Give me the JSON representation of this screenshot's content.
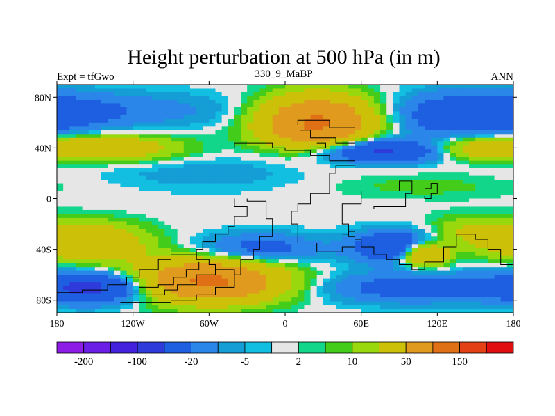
{
  "chart_data": {
    "type": "heatmap",
    "title": "Height perturbation at 500 hPa (in m)",
    "left_string": "Expt = tfGwo",
    "center_string": "330_9_MaBP",
    "right_string": "ANN",
    "xlim": [
      -180,
      180
    ],
    "ylim": [
      -90,
      90
    ],
    "x_ticks": [
      {
        "value": -180,
        "label": "180"
      },
      {
        "value": -120,
        "label": "120W"
      },
      {
        "value": -60,
        "label": "60W"
      },
      {
        "value": 0,
        "label": "0"
      },
      {
        "value": 60,
        "label": "60E"
      },
      {
        "value": 120,
        "label": "120E"
      },
      {
        "value": 180,
        "label": "180"
      }
    ],
    "y_ticks": [
      {
        "value": 80,
        "label": "80N"
      },
      {
        "value": 40,
        "label": "40N"
      },
      {
        "value": 0,
        "label": "0"
      },
      {
        "value": -40,
        "label": "40S"
      },
      {
        "value": -80,
        "label": "80S"
      }
    ],
    "colorbar": {
      "levels": [
        -200,
        -150,
        -100,
        -50,
        -20,
        -10,
        -5,
        -2,
        2,
        5,
        10,
        20,
        50,
        100,
        150,
        200
      ],
      "labels": [
        {
          "level": -200,
          "label": "-200"
        },
        {
          "level": -100,
          "label": "-100"
        },
        {
          "level": -20,
          "label": "-20"
        },
        {
          "level": -5,
          "label": "-5"
        },
        {
          "level": 2,
          "label": "2"
        },
        {
          "level": 10,
          "label": "10"
        },
        {
          "level": 50,
          "label": "50"
        },
        {
          "level": 150,
          "label": "150"
        }
      ],
      "colors": [
        "#8c1ce6",
        "#6a1ee6",
        "#4422dd",
        "#2e3ad9",
        "#1e5ee0",
        "#2a86e8",
        "#159dd6",
        "#12bfe0",
        "#e6e6e6",
        "#12d68a",
        "#44cc1a",
        "#9ad80e",
        "#ccc008",
        "#e09a1e",
        "#e07015",
        "#e34015",
        "#e00e0e"
      ]
    },
    "field_blobs": [
      {
        "lon": -130,
        "lat": 70,
        "rlon": 100,
        "rlat": 14,
        "value": -15
      },
      {
        "lon": 150,
        "lat": 65,
        "rlon": 60,
        "rlat": 18,
        "value": -40
      },
      {
        "lon": 25,
        "lat": 60,
        "rlon": 42,
        "rlat": 20,
        "value": 110
      },
      {
        "lon": -140,
        "lat": 40,
        "rlon": 55,
        "rlat": 10,
        "value": 40
      },
      {
        "lon": 150,
        "lat": 40,
        "rlon": 45,
        "rlat": 9,
        "value": 40
      },
      {
        "lon": 75,
        "lat": 38,
        "rlon": 55,
        "rlat": 9,
        "value": -60
      },
      {
        "lon": -60,
        "lat": 20,
        "rlon": 90,
        "rlat": 14,
        "value": -8
      },
      {
        "lon": 110,
        "lat": 10,
        "rlon": 80,
        "rlat": 10,
        "value": 7
      },
      {
        "lon": -150,
        "lat": -35,
        "rlon": 40,
        "rlat": 15,
        "value": 45
      },
      {
        "lon": 150,
        "lat": -30,
        "rlon": 40,
        "rlat": 14,
        "value": 30
      },
      {
        "lon": -20,
        "lat": -40,
        "rlon": 45,
        "rlat": 12,
        "value": -30
      },
      {
        "lon": 95,
        "lat": -38,
        "rlon": 38,
        "rlat": 12,
        "value": -60
      },
      {
        "lon": 110,
        "lat": -43,
        "rlon": 20,
        "rlat": 10,
        "value": 80
      },
      {
        "lon": -150,
        "lat": -70,
        "rlon": 45,
        "rlat": 12,
        "value": -60
      },
      {
        "lon": -60,
        "lat": -65,
        "rlon": 55,
        "rlat": 16,
        "value": 110
      },
      {
        "lon": 100,
        "lat": -70,
        "rlon": 70,
        "rlat": 12,
        "value": -30
      }
    ]
  }
}
